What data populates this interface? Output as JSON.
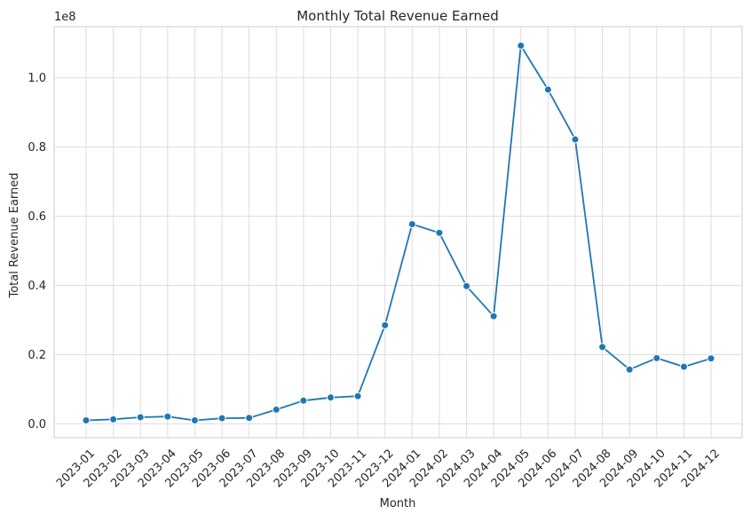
{
  "chart_data": {
    "type": "line",
    "title": "Monthly Total Revenue Earned",
    "xlabel": "Month",
    "ylabel": "Total Revenue Earned",
    "y_offset_label": "1e8",
    "categories": [
      "2023-01",
      "2023-02",
      "2023-03",
      "2023-04",
      "2023-05",
      "2023-06",
      "2023-07",
      "2023-08",
      "2023-09",
      "2023-10",
      "2023-11",
      "2023-12",
      "2024-01",
      "2024-02",
      "2024-03",
      "2024-04",
      "2024-05",
      "2024-06",
      "2024-07",
      "2024-08",
      "2024-09",
      "2024-10",
      "2024-11",
      "2024-12"
    ],
    "series": [
      {
        "color": "#1f77b4",
        "values": [
          1000000,
          1300000,
          1900000,
          2100000,
          1000000,
          1600000,
          1700000,
          4100000,
          6700000,
          7600000,
          8000000,
          28500000,
          57700000,
          55200000,
          39800000,
          31100000,
          109300000,
          96600000,
          82200000,
          22200000,
          15700000,
          19000000,
          16500000,
          18900000
        ]
      }
    ],
    "yticks": [
      0.0,
      0.2,
      0.4,
      0.6,
      0.8,
      1.0
    ],
    "ytick_labels": [
      "0.0",
      "0.2",
      "0.4",
      "0.6",
      "0.8",
      "1.0"
    ],
    "ylim": [
      -4000000,
      114800000
    ],
    "grid": true,
    "xtick_rotation": 45,
    "legend": "none"
  }
}
